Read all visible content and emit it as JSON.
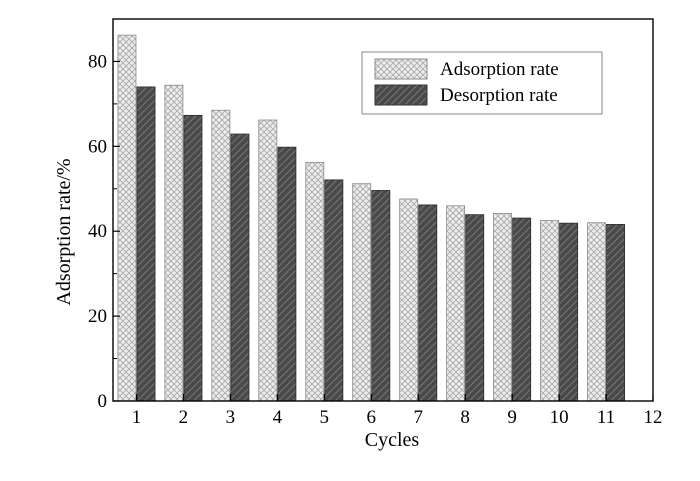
{
  "chart_data": {
    "type": "bar",
    "title": "",
    "xlabel": "Cycles",
    "ylabel": "Adsorption rate/%",
    "categories": [
      "1",
      "2",
      "3",
      "4",
      "5",
      "6",
      "7",
      "8",
      "9",
      "10",
      "11"
    ],
    "x_ticks": [
      "1",
      "2",
      "3",
      "4",
      "5",
      "6",
      "7",
      "8",
      "9",
      "10",
      "11",
      "12"
    ],
    "y_ticks": [
      "0",
      "20",
      "40",
      "60",
      "80"
    ],
    "xlim": [
      0.5,
      12
    ],
    "ylim": [
      0,
      90
    ],
    "grid": false,
    "legend_position": "top-right",
    "series": [
      {
        "name": "Adsorption rate",
        "fill": "crosshatch-light",
        "color": "#d9d9d9",
        "values": [
          86.2,
          74.4,
          68.5,
          66.2,
          56.2,
          51.2,
          47.6,
          46.0,
          44.2,
          42.5,
          42.0
        ]
      },
      {
        "name": "Desorption rate",
        "fill": "diagonal-dark",
        "color": "#555555",
        "values": [
          74.0,
          67.3,
          62.9,
          59.8,
          52.1,
          49.6,
          46.2,
          43.9,
          43.1,
          41.9,
          41.6
        ]
      }
    ]
  }
}
